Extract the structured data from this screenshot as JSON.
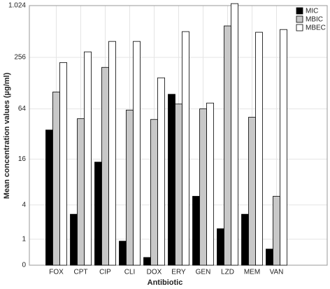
{
  "chart_data": {
    "type": "bar",
    "scale": "log1p",
    "xlabel": "Antibiotic",
    "ylabel": "Mean concentration values (µg/ml)",
    "categories": [
      "FOX",
      "CPT",
      "CIP",
      "CLI",
      "DOX",
      "ERY",
      "GEN",
      "LZD",
      "MEM",
      "VAN"
    ],
    "series": [
      {
        "name": "MIC",
        "color": "#000000",
        "values": [
          36,
          2.9,
          14.7,
          0.9,
          0.23,
          95,
          5.3,
          1.65,
          2.9,
          0.54
        ]
      },
      {
        "name": "MBIC",
        "color": "#c8c8c8",
        "values": [
          101,
          49,
          196,
          62,
          48,
          73,
          64,
          595,
          51,
          5.3
        ]
      },
      {
        "name": "MBEC",
        "color": "#ffffff",
        "values": [
          223,
          297,
          393,
          393,
          148,
          511,
          75,
          1080,
          502,
          540
        ]
      }
    ],
    "ylim": [
      0,
      1024
    ],
    "yticks": [
      0,
      1,
      4,
      16,
      64,
      256,
      {
        "value": 1024,
        "label": "1.024"
      }
    ],
    "grid": true,
    "legend": "top-right"
  }
}
